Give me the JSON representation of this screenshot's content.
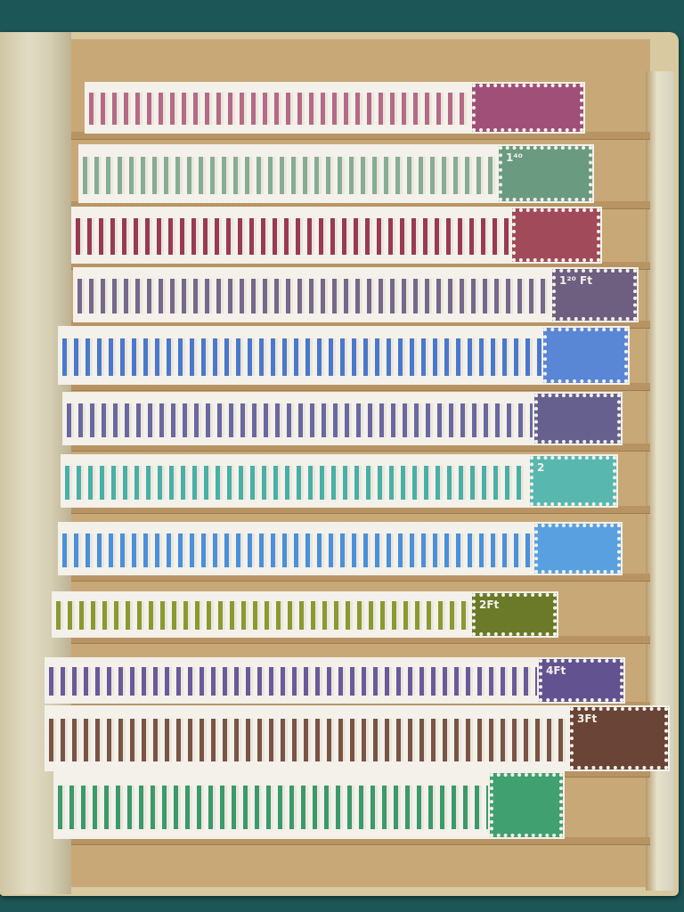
{
  "scene": {
    "subject": "stamp-album-page",
    "background_color": "#1d5656",
    "page_color": "#c9a878"
  },
  "strips": [
    {
      "color": "#b56a86",
      "front_color": "#a05078"
    },
    {
      "color": "#86ad94",
      "front_color": "#6a9a80",
      "front_label": "1⁴⁰"
    },
    {
      "color": "#9a3a52",
      "front_color": "#a04a5a"
    },
    {
      "color": "#76688a",
      "front_color": "#6e5e80",
      "front_label": "1²⁰ Ft"
    },
    {
      "color": "#4a78cc",
      "front_color": "#5a86d6"
    },
    {
      "color": "#6a68a0",
      "front_color": "#66608e"
    },
    {
      "color": "#48b0a6",
      "front_color": "#58b8b0",
      "front_label": "2"
    },
    {
      "color": "#4a90da",
      "front_color": "#58a0e0"
    },
    {
      "color": "#8a9a30",
      "front_color": "#6a7a28",
      "front_label": "2Ft"
    },
    {
      "color": "#6a5a9a",
      "front_color": "#625290",
      "front_label": "4Ft"
    },
    {
      "color": "#7a5444",
      "front_color": "#6a4436",
      "front_label": "3Ft"
    },
    {
      "color": "#3a9a6a",
      "front_color": "#40a070"
    }
  ]
}
